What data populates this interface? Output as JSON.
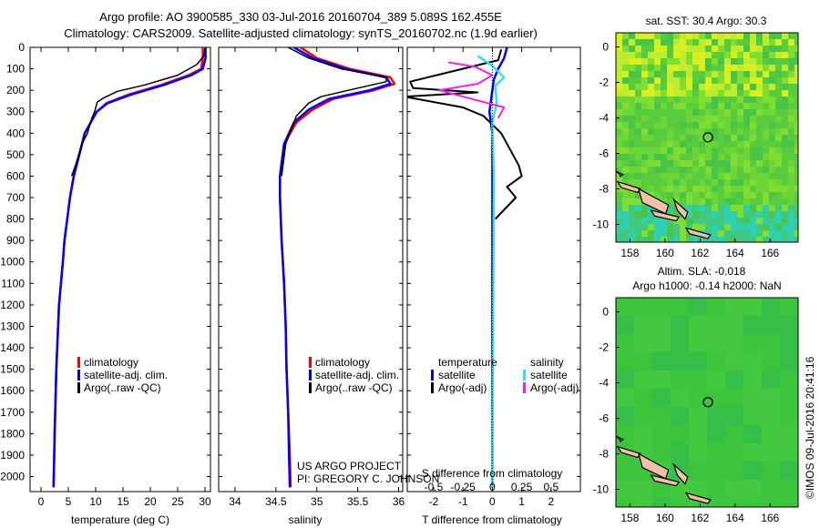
{
  "header": {
    "title_line1": "Argo profile: AO 3900585_330 03-Jul-2016 20160704_389 5.089S 162.455E",
    "title_line2": "Climatology: CARS2009. Satellite-adjusted climatology: synTS_20160702.nc (1.9d earlier)"
  },
  "colors": {
    "climatology": "#ff0000",
    "satellite": "#0000ff",
    "argo": "#000000",
    "sal_satellite": "#33e0ee",
    "sal_argo": "#ee22ee"
  },
  "chart_data": [
    {
      "type": "line",
      "panel": "temperature",
      "xlabel": "temperature (deg C)",
      "ylabel": "",
      "xlim": [
        -2,
        31
      ],
      "ylim": [
        2070,
        0
      ],
      "xticks": [
        0,
        5,
        10,
        15,
        20,
        25,
        30
      ],
      "yticks": [
        0,
        100,
        200,
        300,
        400,
        500,
        600,
        700,
        800,
        900,
        1000,
        1100,
        1200,
        1300,
        1400,
        1500,
        1600,
        1700,
        1800,
        1900,
        2000
      ],
      "legend": [
        "climatology",
        "satellite-adj. clim.",
        "Argo(..raw -QC)"
      ],
      "series": [
        {
          "name": "climatology",
          "x": [
            29.6,
            29.6,
            29.3,
            27.0,
            22.0,
            16.0,
            12.0,
            10.2,
            8.0,
            7.0,
            6.0,
            5.3,
            4.8,
            4.3,
            4.0,
            3.3,
            2.8,
            2.5,
            2.3
          ],
          "y": [
            0,
            50,
            100,
            130,
            175,
            220,
            260,
            300,
            400,
            500,
            600,
            700,
            800,
            900,
            1000,
            1200,
            1500,
            1800,
            2050
          ]
        },
        {
          "name": "satellite-adj. clim.",
          "x": [
            30.1,
            30.1,
            29.6,
            27.5,
            22.5,
            16.5,
            12.2,
            10.2,
            8.0,
            7.0,
            6.0,
            5.3,
            4.8,
            4.3,
            4.0,
            3.3,
            2.8,
            2.5,
            2.3
          ],
          "y": [
            0,
            50,
            100,
            130,
            175,
            220,
            260,
            300,
            400,
            500,
            600,
            700,
            800,
            900,
            1000,
            1200,
            1500,
            1800,
            2050
          ]
        },
        {
          "name": "Argo(..raw -QC)",
          "x": [
            30.0,
            29.8,
            28.5,
            25.0,
            19.0,
            14.0,
            11.5,
            10.3,
            9.8,
            9.3,
            8.5,
            7.5,
            6.9,
            6.3,
            5.6
          ],
          "y": [
            5,
            40,
            80,
            130,
            175,
            205,
            235,
            255,
            300,
            330,
            400,
            450,
            500,
            550,
            600
          ]
        }
      ]
    },
    {
      "type": "line",
      "panel": "salinity",
      "xlabel": "salinity",
      "ylabel": "",
      "xlim": [
        33.8,
        36.05
      ],
      "ylim": [
        2070,
        0
      ],
      "xticks": [
        34,
        34.5,
        35,
        35.5,
        36
      ],
      "legend": [
        "climatology",
        "satellite-adj. clim.",
        "Argo(..raw -QC)"
      ],
      "annotation_line1": "US ARGO PROJECT",
      "annotation_line2": "PI: GREGORY C. JOHNSON",
      "series": [
        {
          "name": "climatology",
          "x": [
            34.8,
            35.0,
            35.4,
            35.9,
            35.95,
            35.7,
            35.2,
            34.95,
            34.75,
            34.6,
            34.55,
            34.55,
            34.57,
            34.6,
            34.62,
            34.63,
            34.65,
            34.67,
            34.68
          ],
          "y": [
            0,
            50,
            100,
            140,
            170,
            200,
            240,
            290,
            350,
            450,
            600,
            700,
            900,
            1100,
            1300,
            1500,
            1700,
            1900,
            2050
          ]
        },
        {
          "name": "satellite-adj. clim.",
          "x": [
            34.72,
            34.95,
            35.35,
            35.85,
            35.9,
            35.65,
            35.15,
            34.9,
            34.72,
            34.6,
            34.55,
            34.55,
            34.57,
            34.6,
            34.62,
            34.63,
            34.65,
            34.66,
            34.67
          ],
          "y": [
            0,
            50,
            100,
            140,
            170,
            200,
            240,
            290,
            350,
            450,
            600,
            700,
            900,
            1100,
            1300,
            1500,
            1700,
            1900,
            2050
          ]
        },
        {
          "name": "Argo(..raw -QC)",
          "x": [
            34.65,
            34.9,
            35.3,
            35.85,
            35.85,
            35.5,
            35.05,
            34.9,
            34.75,
            34.62,
            34.57
          ],
          "y": [
            0,
            50,
            100,
            140,
            160,
            190,
            230,
            260,
            320,
            450,
            600
          ]
        }
      ]
    },
    {
      "type": "line",
      "panel": "difference",
      "xlabel": "T difference from climatology",
      "xlabel_top": "S difference from climatology",
      "xlim": [
        -2.9,
        3.0
      ],
      "ylim": [
        2070,
        0
      ],
      "xticks": [
        -2,
        -1,
        0,
        1,
        2
      ],
      "sticks": [
        "-0.5",
        "-0.25",
        "0",
        "0.25",
        "0.5"
      ],
      "legend_left_title": "temperature",
      "legend_right_title": "salinity",
      "legend": [
        "satellite",
        "Argo(-adj)",
        "satellite",
        "Argo(-adj)"
      ],
      "series": [
        {
          "name": "temperature satellite",
          "x": [
            0.5,
            0.4,
            0.2,
            0.05,
            0.0,
            -0.05,
            -0.1,
            0.0,
            0.0,
            0.0,
            0.0,
            0.0,
            0.0,
            0.0
          ],
          "y": [
            0,
            50,
            100,
            150,
            200,
            250,
            300,
            400,
            600,
            800,
            1000,
            1300,
            1600,
            2050
          ]
        },
        {
          "name": "temperature Argo(-adj)",
          "x": [
            0.3,
            0.2,
            -2.8,
            -2.7,
            -0.5,
            -3.0,
            -1.0,
            -0.3,
            0.3,
            0.9,
            1.0,
            0.5,
            0.8,
            0.1
          ],
          "y": [
            10,
            60,
            160,
            190,
            210,
            230,
            280,
            320,
            400,
            550,
            600,
            650,
            700,
            800
          ]
        },
        {
          "name": "salinity satellite",
          "x": [
            -0.5,
            -0.05,
            0.4,
            0.1,
            0.15,
            0.0,
            0.05,
            0.0
          ],
          "y": [
            40,
            80,
            140,
            180,
            260,
            350,
            600,
            2050
          ]
        },
        {
          "name": "salinity Argo(-adj)",
          "x": [
            -1.5,
            -0.6,
            0.0,
            -0.5,
            -1.8,
            -1.0,
            0.4,
            0.2
          ],
          "y": [
            70,
            90,
            130,
            170,
            200,
            230,
            280,
            330
          ]
        }
      ]
    },
    {
      "type": "heatmap",
      "panel": "sst_map",
      "title": "sat. SST: 30.4  Argo: 30.3",
      "xticks": [
        158,
        160,
        162,
        164,
        166
      ],
      "yticks": [
        0,
        -2,
        -4,
        -6,
        -8,
        -10
      ],
      "xlim": [
        157.2,
        167.6
      ],
      "ylim": [
        -11.0,
        0.8
      ],
      "argo_position": [
        162.455,
        -5.089
      ]
    },
    {
      "type": "heatmap",
      "panel": "sla_map",
      "title_line1": "Altim. SLA: -0.018",
      "title_line2": "Argo h1000: -0.14 h2000: NaN",
      "xticks": [
        158,
        160,
        162,
        164,
        166
      ],
      "yticks": [
        0,
        -2,
        -4,
        -6,
        -8,
        -10
      ],
      "xlim": [
        157.2,
        167.6
      ],
      "ylim": [
        -11.0,
        0.8
      ],
      "argo_position": [
        162.455,
        -5.089
      ]
    }
  ],
  "footer": {
    "timestamp": "©IMOS 09-Jul-2016 20:41:16"
  }
}
